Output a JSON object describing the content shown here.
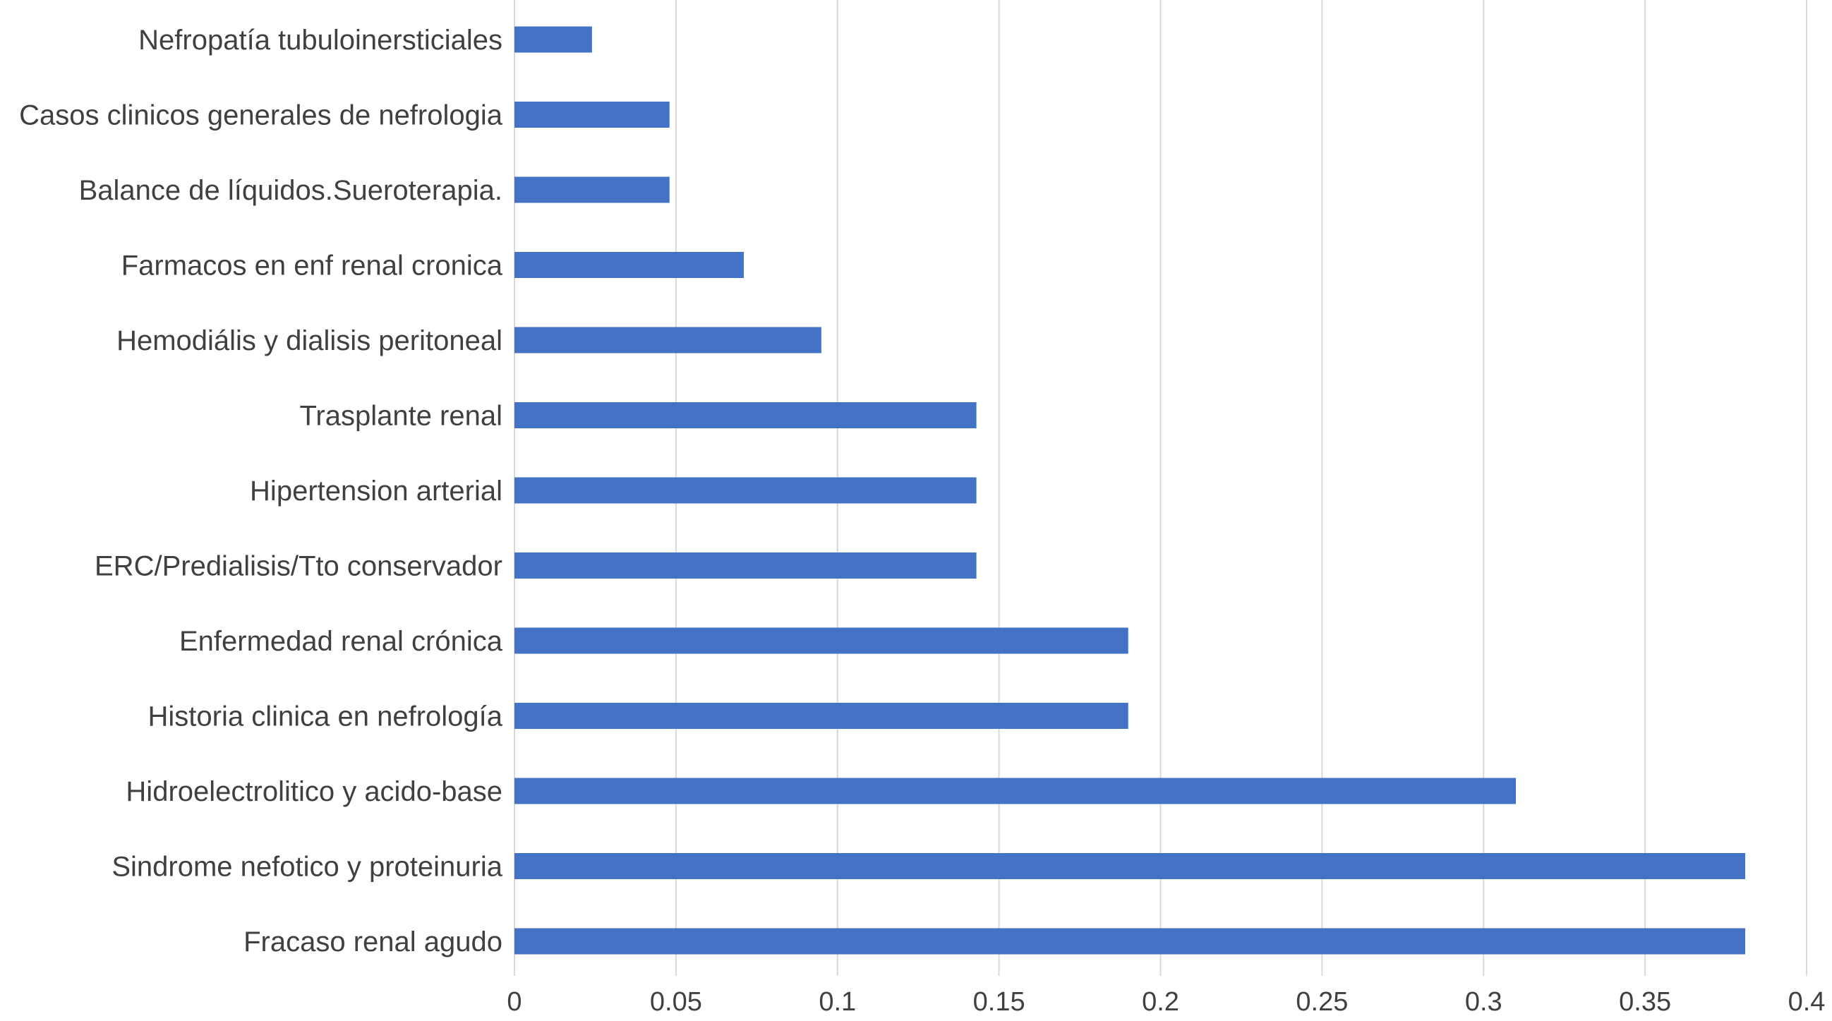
{
  "chart_data": {
    "type": "bar",
    "orientation": "horizontal",
    "title": "",
    "xlabel": "",
    "ylabel": "",
    "categories": [
      "Nefropatía tubuloinersticiales",
      "Casos clinicos generales de nefrologia",
      "Balance de líquidos.Sueroterapia.",
      "Farmacos en enf renal cronica",
      "Hemodiális y dialisis peritoneal",
      "Trasplante renal",
      "Hipertension arterial",
      "ERC/Predialisis/Tto conservador",
      "Enfermedad renal crónica",
      "Historia clinica en nefrología",
      "Hidroelectrolitico y acido-base",
      "Sindrome nefotico y proteinuria",
      "Fracaso renal agudo"
    ],
    "values": [
      0.024,
      0.048,
      0.048,
      0.071,
      0.095,
      0.143,
      0.143,
      0.143,
      0.19,
      0.19,
      0.31,
      0.381,
      0.381
    ],
    "xlim": [
      0,
      0.4
    ],
    "x_ticks": [
      "0",
      "0.05",
      "0.1",
      "0.15",
      "0.2",
      "0.25",
      "0.3",
      "0.35",
      "0.4"
    ],
    "x_tick_values": [
      0,
      0.05,
      0.1,
      0.15,
      0.2,
      0.25,
      0.3,
      0.35,
      0.4
    ],
    "grid": "vertical",
    "legend": "none",
    "bar_color": "#4472c4",
    "grid_color": "#d9d9d9",
    "text_color": "#404040"
  }
}
